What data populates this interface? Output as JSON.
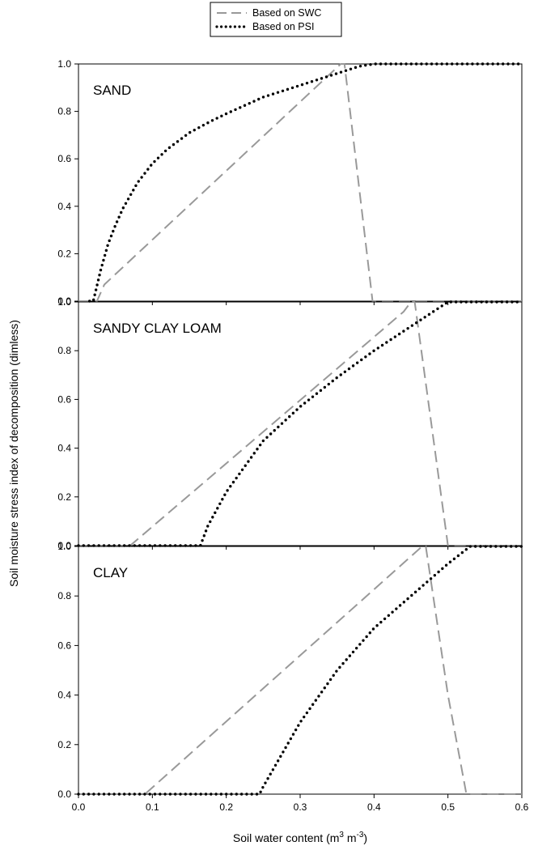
{
  "chart_data": {
    "type": "line",
    "xlabel": "Soil water content (m",
    "xlabel_sup1": "3",
    "xlabel_mid": " m",
    "xlabel_sup2": "-3",
    "xlabel_end": ")",
    "ylabel": "Soil moisture stress index of decomposition (dimless)",
    "xlim": [
      0,
      0.6
    ],
    "ylim": [
      0,
      1
    ],
    "xticks": [
      "0.0",
      "0.1",
      "0.2",
      "0.3",
      "0.4",
      "0.5",
      "0.6"
    ],
    "yticks": [
      "0.0",
      "0.2",
      "0.4",
      "0.6",
      "0.8",
      "1.0"
    ],
    "legend": {
      "position": "top-center",
      "entries": [
        {
          "name": "Based on SWC",
          "color": "#999999",
          "style": "dashed"
        },
        {
          "name": "Based on PSI",
          "color": "#000000",
          "style": "dotted"
        }
      ]
    },
    "panels": [
      {
        "label": "SAND",
        "series": [
          {
            "name": "Based on SWC",
            "x": [
              0.0,
              0.025,
              0.035,
              0.355,
              0.36,
              0.398,
              0.6
            ],
            "y": [
              0.0,
              0.0,
              0.07,
              1.0,
              1.0,
              0.0,
              0.0
            ]
          },
          {
            "name": "Based on PSI",
            "x": [
              0.015,
              0.02,
              0.03,
              0.04,
              0.05,
              0.06,
              0.08,
              0.1,
              0.12,
              0.15,
              0.18,
              0.2,
              0.25,
              0.3,
              0.35,
              0.38,
              0.4,
              0.45,
              0.5,
              0.55,
              0.6
            ],
            "y": [
              0.0,
              0.0,
              0.13,
              0.24,
              0.32,
              0.39,
              0.5,
              0.58,
              0.64,
              0.71,
              0.76,
              0.79,
              0.86,
              0.91,
              0.96,
              0.99,
              1.0,
              1.0,
              1.0,
              1.0,
              1.0
            ]
          }
        ]
      },
      {
        "label": "SANDY CLAY LOAM",
        "series": [
          {
            "name": "Based on SWC",
            "x": [
              0.0,
              0.07,
              0.44,
              0.45,
              0.455,
              0.5,
              0.6
            ],
            "y": [
              0.0,
              0.0,
              0.96,
              1.0,
              1.0,
              0.0,
              0.0
            ]
          },
          {
            "name": "Based on PSI",
            "x": [
              0.0,
              0.165,
              0.175,
              0.2,
              0.25,
              0.3,
              0.35,
              0.4,
              0.45,
              0.5,
              0.55,
              0.6
            ],
            "y": [
              0.0,
              0.0,
              0.08,
              0.22,
              0.43,
              0.57,
              0.69,
              0.8,
              0.9,
              1.0,
              1.0,
              1.0
            ]
          }
        ]
      },
      {
        "label": "CLAY",
        "series": [
          {
            "name": "Based on SWC",
            "x": [
              0.0,
              0.09,
              0.465,
              0.47,
              0.5,
              0.525,
              0.6
            ],
            "y": [
              0.0,
              0.0,
              1.0,
              1.0,
              0.4,
              0.0,
              0.0
            ]
          },
          {
            "name": "Based on PSI",
            "x": [
              0.0,
              0.245,
              0.25,
              0.3,
              0.35,
              0.4,
              0.45,
              0.5,
              0.53,
              0.55,
              0.6
            ],
            "y": [
              0.0,
              0.0,
              0.03,
              0.29,
              0.5,
              0.67,
              0.8,
              0.93,
              1.0,
              1.0,
              1.0
            ]
          }
        ]
      }
    ]
  }
}
